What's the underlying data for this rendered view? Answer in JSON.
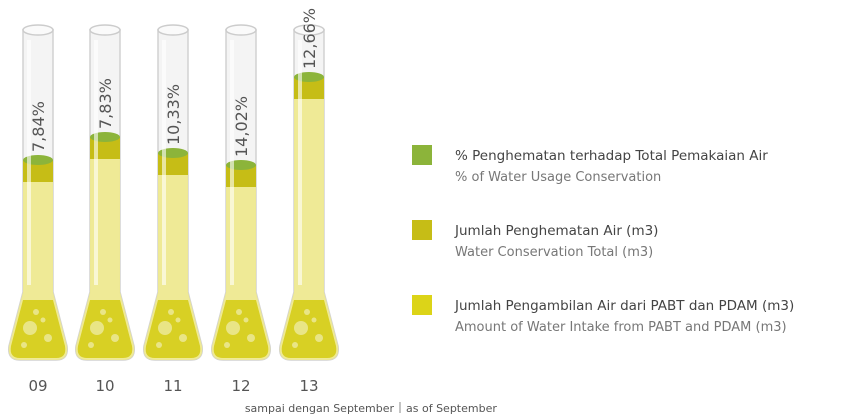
{
  "chart_data": {
    "type": "tube",
    "categories": [
      "09",
      "10",
      "11",
      "12",
      "13"
    ],
    "values": [
      7.84,
      7.83,
      10.33,
      14.02,
      12.66
    ],
    "value_labels": [
      "7,84%",
      "7,83%",
      "10,33%",
      "14,02%",
      "12,66%"
    ],
    "legend": [
      {
        "label": "% Penghematan terhadap Total Pemakaian Air",
        "sublabel": "% of Water Usage Conservation",
        "color": "#8cb43a"
      },
      {
        "label": "Jumlah Penghematan Air (m3)",
        "sublabel": "Water Conservation Total (m3)",
        "color": "#c6bd16"
      },
      {
        "label": "Jumlah Pengambilan Air dari PABT dan PDAM (m3)",
        "sublabel": "Amount of Water Intake from PABT and PDAM (m3)",
        "color": "#dcd418"
      }
    ],
    "note": [
      "sampai dengan September",
      "as of September"
    ]
  }
}
